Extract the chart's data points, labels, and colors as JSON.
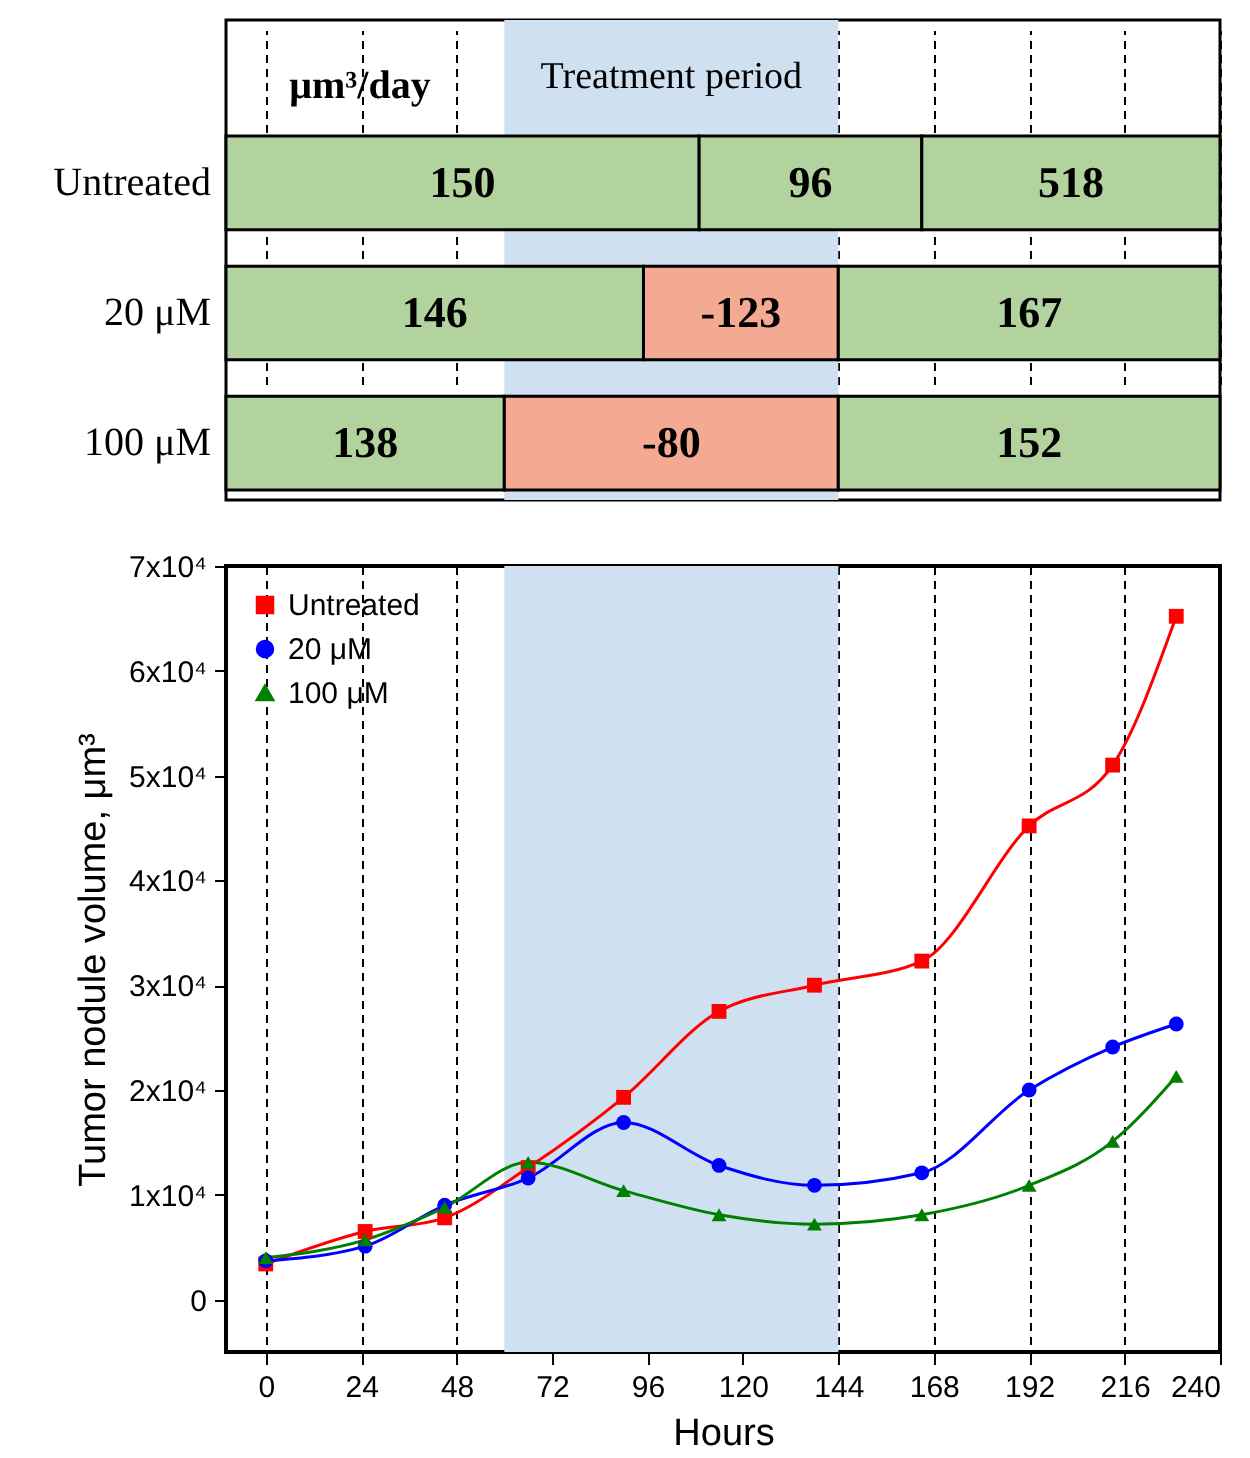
{
  "chart_data": [
    {
      "type": "bar",
      "orientation": "horizontal",
      "categories": [
        "Untreated",
        "20 μM",
        "100 μM"
      ],
      "xlim": [
        -10,
        240
      ],
      "xticks": [
        0,
        24,
        48,
        72,
        96,
        120,
        144,
        168,
        192,
        216,
        240
      ],
      "tick_labels": "y",
      "grid": "x",
      "annotations": [
        "μm³/day",
        {
          "text": "150",
          "x": 49.5,
          "y": "Untreated"
        },
        {
          "text": "96",
          "x": 137,
          "y": "Untreated"
        },
        {
          "text": "518",
          "x": 202.5,
          "y": "Untreated"
        },
        {
          "text": "146",
          "x": 42.5,
          "y": "20 μM"
        },
        {
          "text": "-123",
          "x": 119.5,
          "y": "20 μM"
        },
        {
          "text": "167",
          "x": 192,
          "y": "20 μM"
        },
        {
          "text": "138",
          "x": 25,
          "y": "100 μM"
        },
        {
          "text": "-80",
          "x": 102,
          "y": "100 μM"
        },
        {
          "text": "152",
          "x": 192,
          "y": "100 μM"
        }
      ],
      "bands": [
        {
          "axis": "x",
          "from": 60,
          "to": 144,
          "label": "Treatment period",
          "color": "#cfe0f1"
        }
      ],
      "series": [
        {
          "base": [
            -10,
            -10,
            -10
          ],
          "values": [
            119,
            105,
            70
          ],
          "colors": [
            "#b3d39e",
            "#b3d39e",
            "#b3d39e"
          ]
        },
        {
          "base": [
            109,
            95,
            60
          ],
          "values": [
            56,
            49,
            84
          ],
          "colors": [
            "#b3d39e",
            "#f4aa92",
            "#f4aa92"
          ]
        },
        {
          "base": [
            165,
            144,
            144
          ],
          "values": [
            75,
            96,
            96
          ],
          "colors": [
            "#b3d39e",
            "#b3d39e",
            "#b3d39e"
          ]
        }
      ]
    },
    {
      "type": "line",
      "xlabel": "Hours",
      "ylabel": "Tumor nodule volume, μm³",
      "xlim": [
        -10,
        240
      ],
      "xticks": [
        0,
        24,
        48,
        72,
        96,
        120,
        144,
        168,
        192,
        216,
        240
      ],
      "ylim": [
        -5000,
        70000
      ],
      "yticks": [
        0,
        {
          "value": 10000,
          "label": "1x10⁴"
        },
        {
          "value": 20000,
          "label": "2x10⁴"
        },
        {
          "value": 30000,
          "label": "3x10⁴"
        },
        {
          "value": 40000,
          "label": "4x10⁴"
        },
        {
          "value": 50000,
          "label": "5x10⁴"
        },
        {
          "value": 60000,
          "label": "6x10⁴"
        },
        {
          "value": 70000,
          "label": "7x10⁴"
        }
      ],
      "grid": "x",
      "legend": "top left",
      "bands": [
        {
          "axis": "x",
          "from": 60,
          "to": 144,
          "color": "#cfe0f1"
        }
      ],
      "x": [
        0,
        25,
        45,
        66,
        90,
        114,
        138,
        165,
        192,
        213,
        229
      ],
      "series": [
        {
          "name": "Untreated",
          "color": "#ff0000",
          "marker": "square",
          "values": [
            3400,
            6500,
            7800,
            12600,
            19300,
            27500,
            30000,
            32300,
            45200,
            51000,
            65200
          ]
        },
        {
          "name": "20 μM",
          "color": "#0000ff",
          "marker": "circle",
          "values": [
            3700,
            5100,
            9000,
            11600,
            16900,
            12800,
            10900,
            12100,
            20000,
            24100,
            26300
          ]
        },
        {
          "name": "100 μM",
          "color": "#008000",
          "marker": "triangle",
          "values": [
            4000,
            5700,
            8800,
            13100,
            10400,
            8100,
            7200,
            8100,
            10900,
            15100,
            21300
          ]
        }
      ]
    }
  ]
}
